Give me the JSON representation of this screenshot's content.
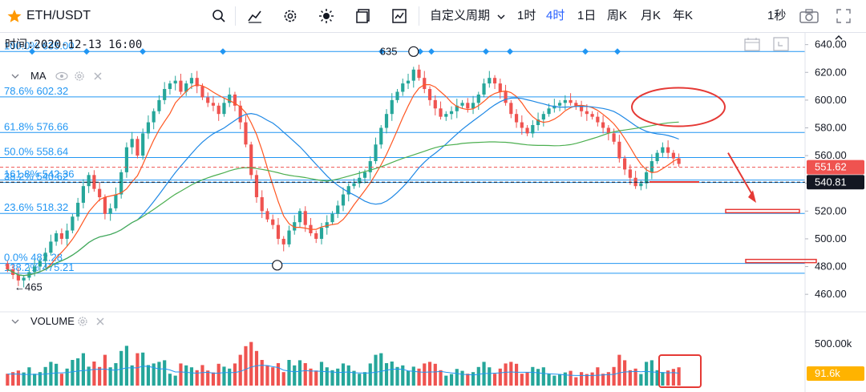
{
  "toolbar": {
    "symbol": "ETH/USDT",
    "custom_period": "自定义周期",
    "intervals": [
      "1时",
      "4时",
      "1日",
      "周K",
      "月K",
      "年K"
    ],
    "active_interval": "4时",
    "refresh": "1秒",
    "icons": [
      "star-icon",
      "search-icon",
      "indicator-icon",
      "settings-icon",
      "theme-icon",
      "layout-icon",
      "chart-type-icon",
      "chevron-down-icon",
      "camera-icon",
      "fullscreen-icon"
    ]
  },
  "legend": {
    "time": "时间:2020-12-13 16:00",
    "ma_label": "MA",
    "volume_label": "VOLUME"
  },
  "annotations": {
    "high_marker": "635",
    "low_marker": "465"
  },
  "colors": {
    "up": "#26a69a",
    "down": "#ef5350",
    "fib": "#2196f3",
    "ma_short": "#ff5722",
    "ma_mid": "#1e88e5",
    "ma_long": "#4caf50",
    "annotation": "#e53935"
  },
  "chart_data": {
    "type": "candlestick",
    "y_axis_ticks": [
      "640.00",
      "620.00",
      "600.00",
      "580.00",
      "560.00",
      "540.00",
      "520.00",
      "500.00",
      "480.00",
      "460.00"
    ],
    "ylim": [
      452,
      645
    ],
    "current_price_labels": [
      "551.62",
      "540.81"
    ],
    "fib_levels": [
      {
        "label": "100.0% 635.00",
        "value": 635.0
      },
      {
        "label": "78.6% 602.32",
        "value": 602.32
      },
      {
        "label": "61.8% 576.66",
        "value": 576.66
      },
      {
        "label": "50.0% 558.64",
        "value": 558.64
      },
      {
        "label": "161.8% 542.36",
        "value": 542.36
      },
      {
        "label": "38.2% 540.62",
        "value": 540.62
      },
      {
        "label": "23.6% 518.32",
        "value": 518.32
      },
      {
        "label": "0.0% 482.28",
        "value": 482.28
      },
      {
        "label": "138.2% 475.21",
        "value": 475.21
      }
    ],
    "close": [
      478,
      474,
      470,
      472,
      476,
      480,
      484,
      490,
      498,
      504,
      500,
      506,
      516,
      526,
      538,
      546,
      536,
      530,
      518,
      522,
      532,
      548,
      566,
      572,
      560,
      576,
      584,
      592,
      600,
      608,
      612,
      614,
      606,
      612,
      616,
      610,
      602,
      598,
      596,
      590,
      598,
      604,
      596,
      584,
      568,
      546,
      530,
      520,
      514,
      510,
      500,
      496,
      506,
      512,
      520,
      510,
      504,
      500,
      508,
      512,
      518,
      524,
      532,
      538,
      540,
      544,
      548,
      556,
      568,
      580,
      590,
      600,
      606,
      612,
      614,
      622,
      616,
      608,
      600,
      594,
      588,
      590,
      592,
      596,
      598,
      594,
      598,
      604,
      612,
      616,
      612,
      606,
      598,
      590,
      584,
      580,
      576,
      582,
      586,
      590,
      594,
      596,
      598,
      600,
      598,
      596,
      592,
      590,
      588,
      584,
      580,
      576,
      570,
      558,
      550,
      544,
      538,
      540,
      548,
      556,
      562,
      566,
      562,
      558,
      554
    ],
    "volume_ticks": [
      "500.00k"
    ],
    "current_volume": "91.6k"
  }
}
